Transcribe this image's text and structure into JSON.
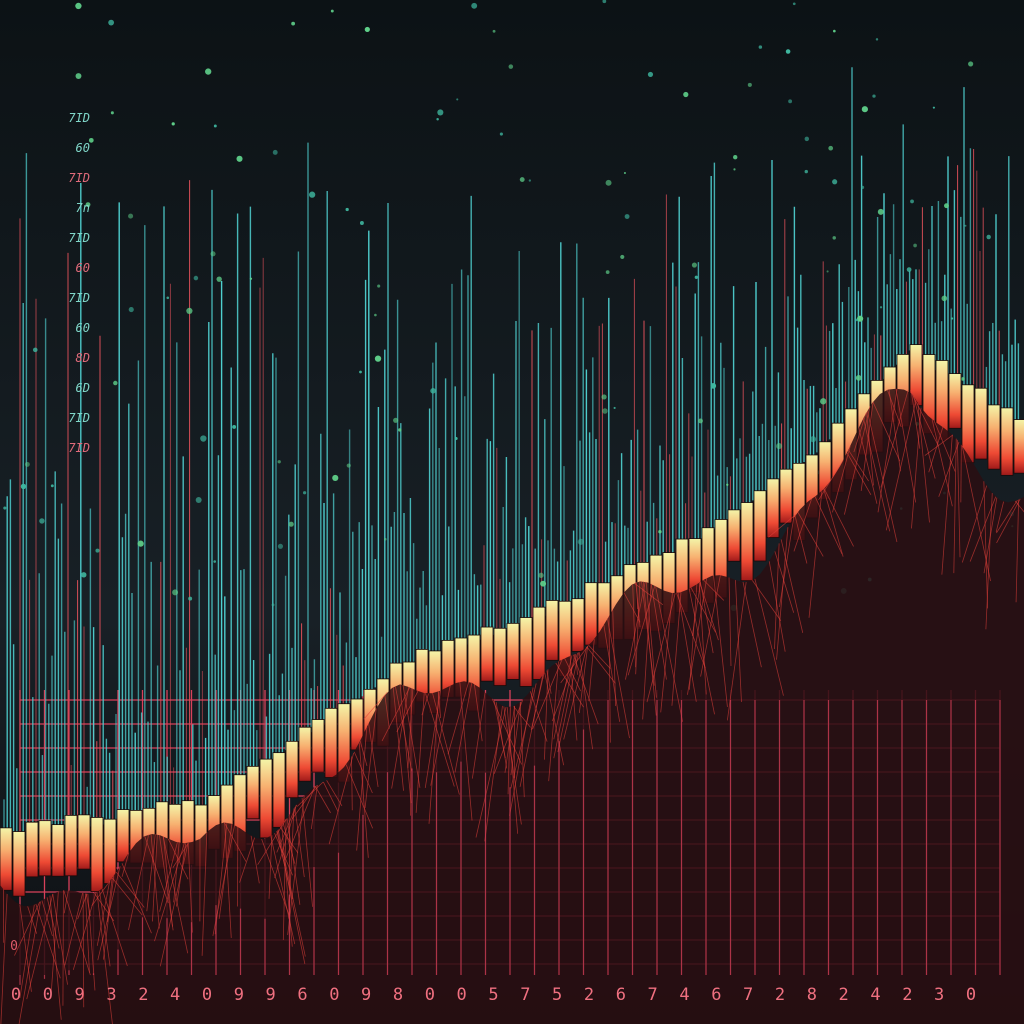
{
  "axis_labels": [
    "0",
    "0",
    "9",
    "3",
    "2",
    "4",
    "0",
    "9",
    "9",
    "6",
    "0",
    "9",
    "8",
    "0",
    "0",
    "5",
    "7",
    "5",
    "2",
    "6",
    "7",
    "4",
    "6",
    "7",
    "2",
    "8",
    "2",
    "4",
    "2",
    "3",
    "0"
  ],
  "side_labels": [
    "7ID",
    "60",
    "7ID",
    "7n",
    "7ID",
    "60",
    "7ID",
    "60",
    "8D",
    "6D",
    "7ID",
    "7ID"
  ],
  "corner_label": "0"
}
